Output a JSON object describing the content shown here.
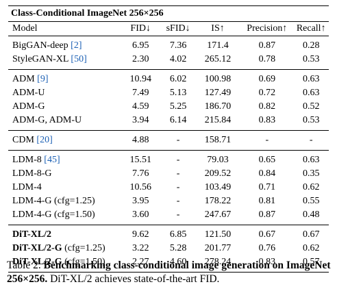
{
  "table": {
    "title": "Class-Conditional ImageNet 256×256",
    "columns": [
      "Model",
      "FID↓",
      "sFID↓",
      "IS↑",
      "Precision↑",
      "Recall↑"
    ],
    "groups": [
      {
        "rows": [
          {
            "model": "BigGAN-deep ",
            "ref": "[2]",
            "model_suffix": "",
            "fid": "6.95",
            "sfid": "7.36",
            "is": "171.4",
            "precision": "0.87",
            "recall": "0.28"
          },
          {
            "model": "StyleGAN-XL ",
            "ref": "[50]",
            "model_suffix": "",
            "fid": "2.30",
            "sfid": "4.02",
            "is": "265.12",
            "precision": "0.78",
            "recall": "0.53"
          }
        ]
      },
      {
        "rows": [
          {
            "model": "ADM ",
            "ref": "[9]",
            "model_suffix": "",
            "fid": "10.94",
            "sfid": "6.02",
            "is": "100.98",
            "precision": "0.69",
            "recall": "0.63"
          },
          {
            "model": "ADM-U",
            "ref": "",
            "model_suffix": "",
            "fid": "7.49",
            "sfid": "5.13",
            "is": "127.49",
            "precision": "0.72",
            "recall": "0.63"
          },
          {
            "model": "ADM-G",
            "ref": "",
            "model_suffix": "",
            "fid": "4.59",
            "sfid": "5.25",
            "is": "186.70",
            "precision": "0.82",
            "recall": "0.52"
          },
          {
            "model": "ADM-G, ADM-U",
            "ref": "",
            "model_suffix": "",
            "fid": "3.94",
            "sfid": "6.14",
            "is": "215.84",
            "precision": "0.83",
            "recall": "0.53"
          }
        ]
      },
      {
        "rows": [
          {
            "model": "CDM ",
            "ref": "[20]",
            "model_suffix": "",
            "fid": "4.88",
            "sfid": "-",
            "is": "158.71",
            "precision": "-",
            "recall": "-"
          }
        ]
      },
      {
        "rows": [
          {
            "model": "LDM-8 ",
            "ref": "[45]",
            "model_suffix": "",
            "fid": "15.51",
            "sfid": "-",
            "is": "79.03",
            "precision": "0.65",
            "recall": "0.63"
          },
          {
            "model": "LDM-8-G",
            "ref": "",
            "model_suffix": "",
            "fid": "7.76",
            "sfid": "-",
            "is": "209.52",
            "precision": "0.84",
            "recall": "0.35"
          },
          {
            "model": "LDM-4",
            "ref": "",
            "model_suffix": "",
            "fid": "10.56",
            "sfid": "-",
            "is": "103.49",
            "precision": "0.71",
            "recall": "0.62"
          },
          {
            "model": "LDM-4-G (cfg=1.25)",
            "ref": "",
            "model_suffix": "",
            "fid": "3.95",
            "sfid": "-",
            "is": "178.22",
            "precision": "0.81",
            "recall": "0.55"
          },
          {
            "model": "LDM-4-G (cfg=1.50)",
            "ref": "",
            "model_suffix": "",
            "fid": "3.60",
            "sfid": "-",
            "is": "247.67",
            "precision": "0.87",
            "recall": "0.48",
            "bold": [
              "precision"
            ]
          }
        ]
      },
      {
        "rows": [
          {
            "model": "DiT-XL/2",
            "ref": "",
            "model_suffix": "",
            "model_bold": true,
            "fid": "9.62",
            "sfid": "6.85",
            "is": "121.50",
            "precision": "0.67",
            "recall": "0.67",
            "bold": [
              "recall"
            ]
          },
          {
            "model": "DiT-XL/2-G",
            "ref": "",
            "model_suffix": " (cfg=1.25)",
            "model_bold": true,
            "fid": "3.22",
            "sfid": "5.28",
            "is": "201.77",
            "precision": "0.76",
            "recall": "0.62"
          },
          {
            "model": "DiT-XL/2-G",
            "ref": "",
            "model_suffix": " (cfg=1.50)",
            "model_bold": true,
            "fid": "2.27",
            "sfid": "4.60",
            "is": "278.24",
            "precision": "0.83",
            "recall": "0.57",
            "bold": [
              "fid",
              "sfid",
              "is"
            ]
          }
        ]
      }
    ]
  },
  "caption": {
    "label": "Table 2. ",
    "bold": "Benchmarking class-conditional image generation on ImageNet 256×256.",
    "rest": " DiT-XL/2 achieves state-of-the-art FID."
  }
}
